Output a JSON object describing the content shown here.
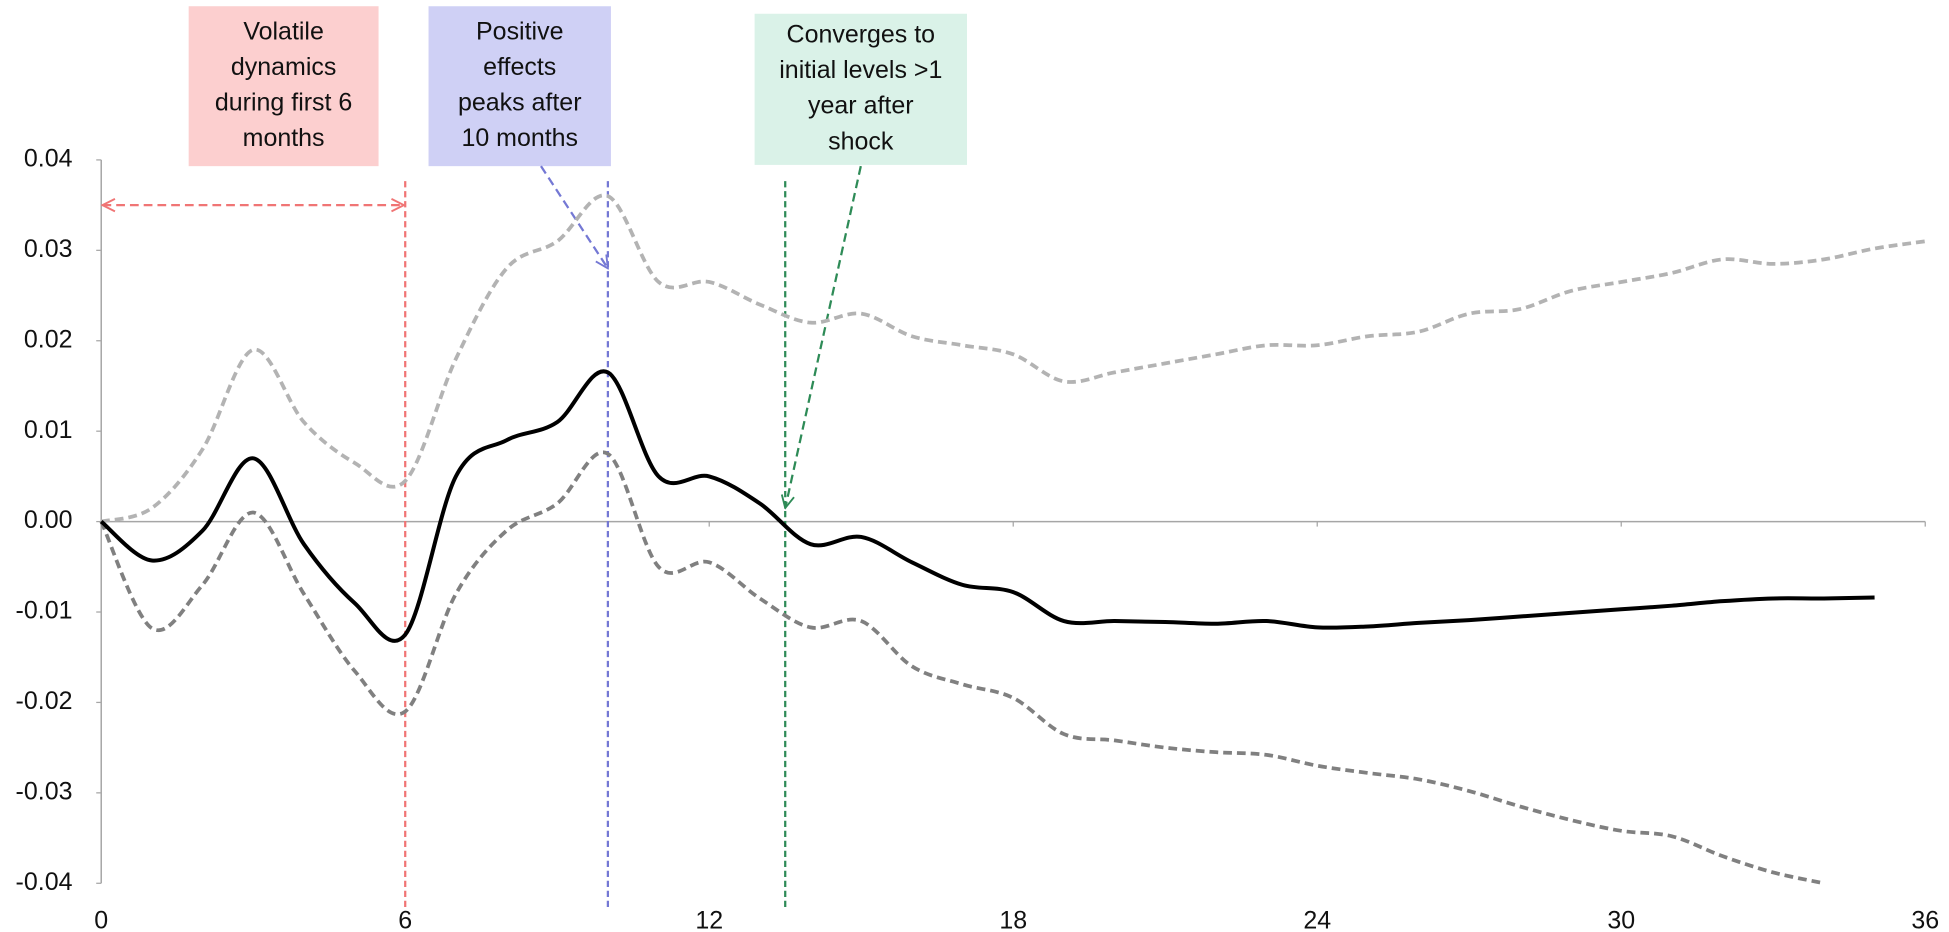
{
  "chart_data": {
    "type": "line",
    "x": [
      0,
      1,
      2,
      3,
      4,
      5,
      6,
      7,
      8,
      9,
      10,
      11,
      12,
      13,
      14,
      15,
      16,
      17,
      18,
      19,
      20,
      21,
      22,
      23,
      24,
      25,
      26,
      27,
      28,
      29,
      30,
      31,
      32,
      33,
      34,
      35,
      36
    ],
    "series": [
      {
        "color": "#b3b3b3",
        "dashed": true,
        "values": [
          0,
          0.0015,
          0.008,
          0.019,
          0.011,
          0.0065,
          0.0045,
          0.018,
          0.028,
          0.031,
          0.036,
          0.0265,
          0.0265,
          0.024,
          0.022,
          0.023,
          0.0205,
          0.0195,
          0.0185,
          0.0155,
          0.0165,
          0.0175,
          0.0185,
          0.0195,
          0.0195,
          0.0205,
          0.021,
          0.023,
          0.0235,
          0.0255,
          0.0265,
          0.0275,
          0.029,
          0.0285,
          0.029,
          0.0302,
          0.031
        ]
      },
      {
        "color": "#808080",
        "dashed": true,
        "values": [
          0,
          -0.0118,
          -0.007,
          0.001,
          -0.008,
          -0.0165,
          -0.021,
          -0.008,
          -0.001,
          0.002,
          0.0075,
          -0.005,
          -0.0045,
          -0.0085,
          -0.0117,
          -0.011,
          -0.016,
          -0.018,
          -0.0195,
          -0.0235,
          -0.0242,
          -0.025,
          -0.0255,
          -0.0258,
          -0.027,
          -0.0278,
          -0.0285,
          -0.0298,
          -0.0315,
          -0.033,
          -0.0342,
          -0.0348,
          -0.037,
          -0.0388,
          -0.04,
          null,
          null
        ]
      },
      {
        "color": "#000000",
        "dashed": false,
        "values": [
          0,
          -0.0043,
          -0.001,
          0.007,
          -0.0025,
          -0.009,
          -0.0125,
          0.005,
          0.009,
          0.011,
          0.0165,
          0.005,
          0.005,
          0.002,
          -0.0025,
          -0.0017,
          -0.0045,
          -0.007,
          -0.0078,
          -0.011,
          -0.011,
          -0.0111,
          -0.0113,
          -0.011,
          -0.0117,
          -0.0116,
          -0.0112,
          -0.0109,
          -0.0105,
          -0.0101,
          -0.0097,
          -0.0093,
          -0.0088,
          -0.0085,
          -0.0085,
          -0.0084,
          null
        ]
      }
    ],
    "xlim": [
      0,
      36
    ],
    "xticks": [
      0,
      6,
      12,
      18,
      24,
      30,
      36
    ],
    "ylim": [
      -0.04,
      0.04
    ],
    "yticks": [
      {
        "value": 0.04,
        "label": "0.04"
      },
      {
        "value": 0.03,
        "label": "0.03"
      },
      {
        "value": 0.02,
        "label": "0.02"
      },
      {
        "value": 0.01,
        "label": "0.01"
      },
      {
        "value": 0,
        "label": "0.00"
      },
      {
        "value": -0.01,
        "label": "-0.01"
      },
      {
        "value": -0.02,
        "label": "-0.02"
      },
      {
        "value": -0.03,
        "label": "-0.03"
      },
      {
        "value": -0.04,
        "label": "-0.04"
      }
    ],
    "annotations": [
      {
        "lines": [
          "Volatile",
          "dynamics",
          "during first 6",
          "months"
        ],
        "box_color": "#fccfcf",
        "line_color": "#f07575",
        "vline_x": 6,
        "span": [
          0,
          6
        ],
        "span_y": 0.035
      },
      {
        "lines": [
          "Positive",
          "effects",
          "peaks after",
          "10 months"
        ],
        "box_color": "#cfd0f5",
        "line_color": "#7478d4",
        "vline_x": 10,
        "arrow_to": [
          10,
          0.028
        ]
      },
      {
        "lines": [
          "Converges to",
          "initial levels >1",
          "year after",
          "shock"
        ],
        "box_color": "#daf2e8",
        "line_color": "#2e8b57",
        "vline_x": 13.5,
        "arrow_to": [
          13.5,
          0.0015
        ]
      }
    ]
  }
}
